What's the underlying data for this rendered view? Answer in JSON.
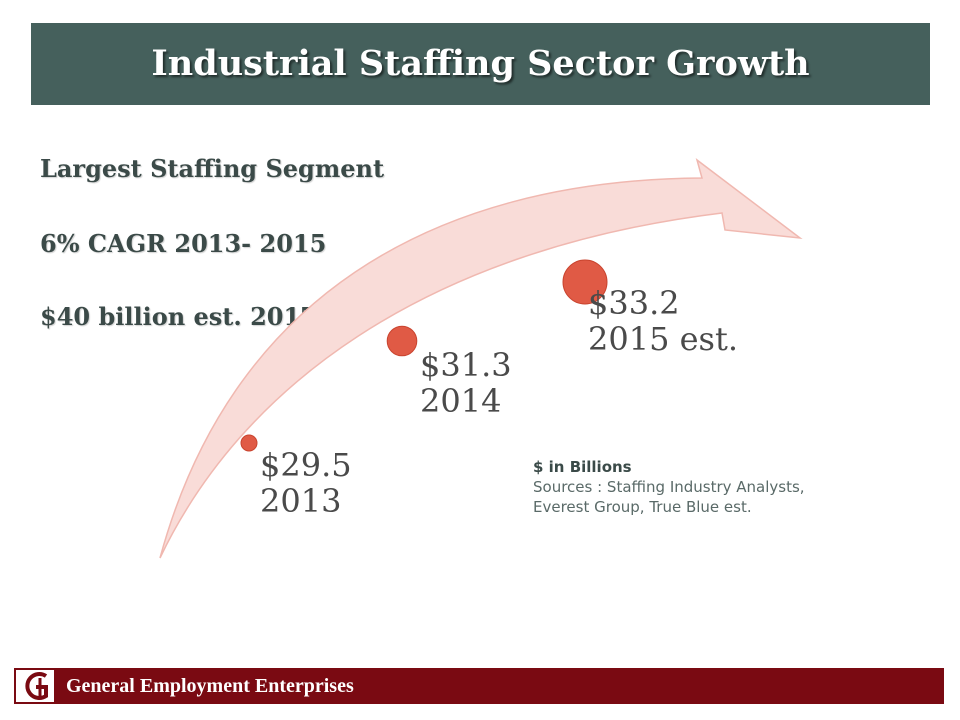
{
  "title": "Industrial Staffing Sector Growth",
  "bullets": [
    "Largest Staffing Segment",
    "6% CAGR 2013- 2015",
    "$40 billion est. 2017"
  ],
  "chart_data": {
    "type": "scatter",
    "unit_label": "$ in Billions",
    "sources": [
      "Sources : Staffing Industry Analysts,",
      "Everest Group, True Blue est."
    ],
    "points": [
      {
        "value_label": "$29.5",
        "period_label": "2013",
        "value": 29.5
      },
      {
        "value_label": "$31.3",
        "period_label": "2014",
        "value": 31.3
      },
      {
        "value_label": "$33.2",
        "period_label": "2015 est.",
        "value": 33.2
      }
    ],
    "colors": {
      "marker": "#e05a45",
      "arrow_fill": "#f9dcd8",
      "arrow_stroke": "#f0b8b0"
    }
  },
  "footer": {
    "logo_icon": "ge-logo-icon",
    "company": "General Employment Enterprises"
  },
  "colors": {
    "title_bar": "#45605c",
    "footer_bar": "#7a0a12"
  }
}
